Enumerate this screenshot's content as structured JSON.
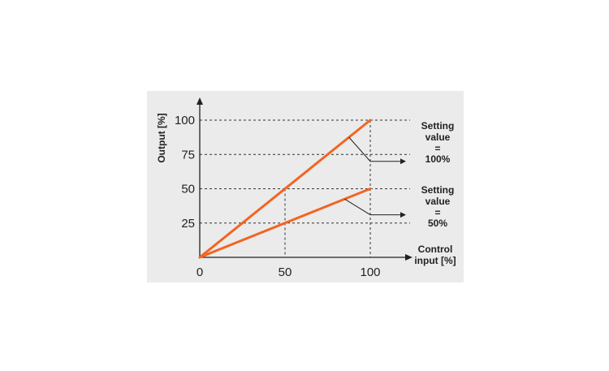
{
  "chart_data": {
    "type": "line",
    "ylabel": "Output [%]",
    "xlabel_lines": [
      "Control",
      "input [%]"
    ],
    "xticks": [
      0,
      50,
      100
    ],
    "yticks": [
      25,
      50,
      75,
      100
    ],
    "xlim": [
      0,
      120
    ],
    "ylim": [
      0,
      100
    ],
    "series": [
      {
        "x": [
          0,
          100
        ],
        "y": [
          0,
          100
        ],
        "color": "#f26522"
      },
      {
        "x": [
          0,
          100
        ],
        "y": [
          0,
          50
        ],
        "color": "#f26522"
      }
    ],
    "annotations": [
      {
        "lines": [
          "Setting",
          "value",
          "=",
          "100%"
        ]
      },
      {
        "lines": [
          "Setting",
          "value",
          "=",
          "50%"
        ]
      }
    ],
    "grid": "dashed reference lines at y = 25, 50, 75, 100 and x = 50, 100"
  }
}
